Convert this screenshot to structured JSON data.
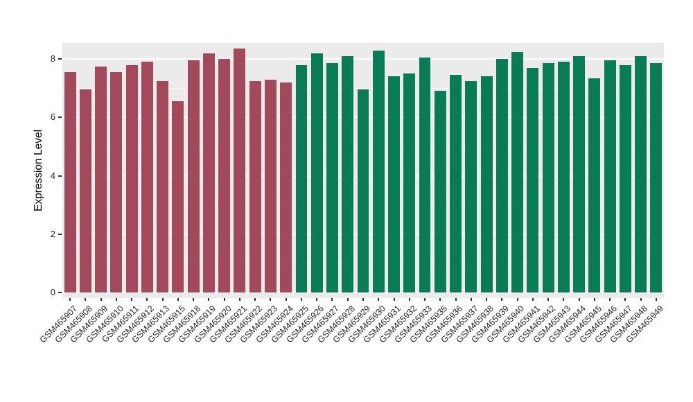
{
  "figure": {
    "background": "#FFFFFF",
    "panel_background": "#EBEBEB",
    "grid_major_color": "#FFFFFF",
    "grid_minor_color": "#FFFFFF",
    "axis_text_color": "#262626",
    "axis_title_color": "#000000",
    "tick_color": "#333333"
  },
  "chart_data": {
    "type": "bar",
    "title": "",
    "xlabel": "",
    "ylabel": "Expression Level",
    "ylim": [
      0,
      8.55
    ],
    "yticks": [
      0,
      2,
      4,
      6,
      8
    ],
    "ytick_labels": [
      "0",
      "2",
      "4",
      "6",
      "8"
    ],
    "yticks_minor": [
      1,
      3,
      5,
      7
    ],
    "grid": true,
    "legend_position": "none",
    "groups": [
      {
        "name": "group-1-red",
        "color": "#A24A5C",
        "count": 15
      },
      {
        "name": "group-2-green",
        "color": "#097B57",
        "count": 24
      }
    ],
    "categories": [
      "GSM465907",
      "GSM465908",
      "GSM465909",
      "GSM465910",
      "GSM465911",
      "GSM465912",
      "GSM465913",
      "GSM465915",
      "GSM465918",
      "GSM465919",
      "GSM465920",
      "GSM465921",
      "GSM465922",
      "GSM465923",
      "GSM465924",
      "GSM465925",
      "GSM465926",
      "GSM465927",
      "GSM465928",
      "GSM465929",
      "GSM465930",
      "GSM465931",
      "GSM465932",
      "GSM465933",
      "GSM465935",
      "GSM465936",
      "GSM465937",
      "GSM465938",
      "GSM465939",
      "GSM465940",
      "GSM465941",
      "GSM465942",
      "GSM465943",
      "GSM465944",
      "GSM465945",
      "GSM465946",
      "GSM465947",
      "GSM465948",
      "GSM465949"
    ],
    "values": [
      7.55,
      6.95,
      7.75,
      7.55,
      7.8,
      7.9,
      7.25,
      6.55,
      7.95,
      8.2,
      8.0,
      8.35,
      7.25,
      7.3,
      7.2,
      7.8,
      8.2,
      7.85,
      8.1,
      6.95,
      8.3,
      7.4,
      7.5,
      8.05,
      6.9,
      7.45,
      7.25,
      7.4,
      8.0,
      8.25,
      7.7,
      7.85,
      7.9,
      8.1,
      7.35,
      7.95,
      7.8,
      8.1,
      7.85
    ]
  }
}
